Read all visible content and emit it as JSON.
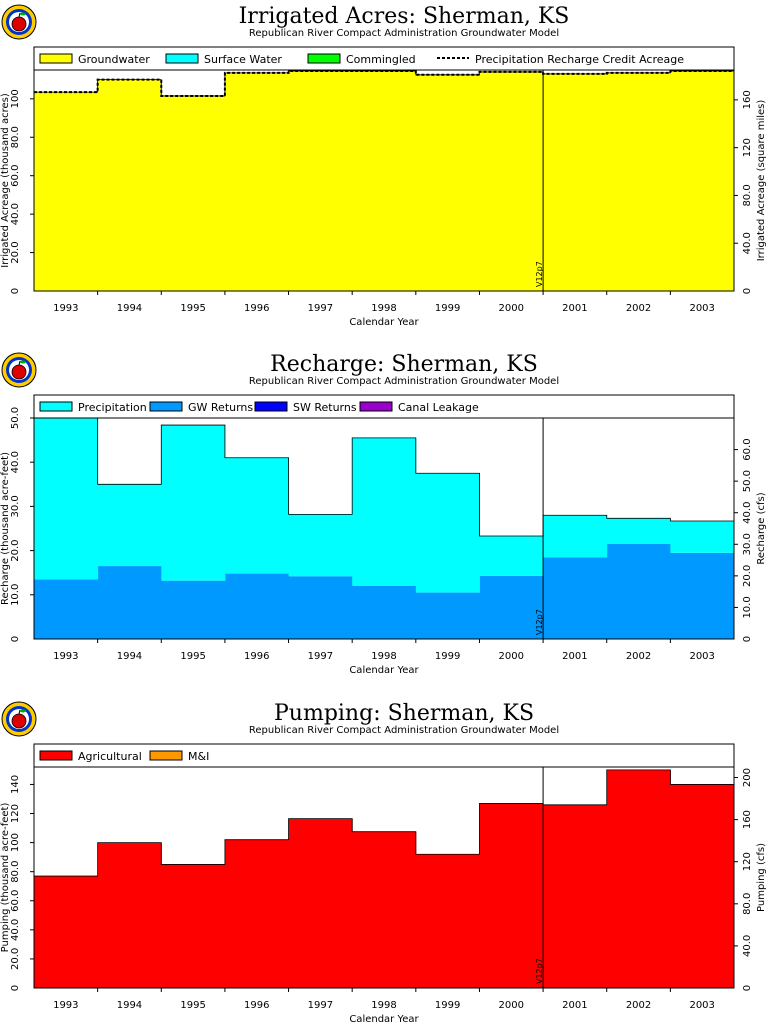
{
  "chart_data": [
    {
      "type": "area",
      "title": "Irrigated Acres: Sherman, KS",
      "subtitle": "Republican River Compact Administration Groundwater Model",
      "xlabel": "Calendar Year",
      "ylabel": "Irrigated Acreage (thousand acres)",
      "y2label": "Irrigated Acreage (square miles)",
      "categories": [
        "1993",
        "1994",
        "1995",
        "1996",
        "1997",
        "1998",
        "1999",
        "2000",
        "2001",
        "2002",
        "2003"
      ],
      "ylim": [
        0,
        115
      ],
      "yticks": [
        "20.0",
        "40.0",
        "60.0",
        "80.0",
        "100"
      ],
      "y2ticks": [
        "40.0",
        "80.0",
        "120",
        "160"
      ],
      "legend": [
        {
          "name": "Groundwater",
          "color": "#ffff00",
          "kind": "box"
        },
        {
          "name": "Surface Water",
          "color": "#00ffff",
          "kind": "box"
        },
        {
          "name": "Commingled",
          "color": "#00ff00",
          "kind": "box"
        },
        {
          "name": "Precipitation Recharge Credit Acreage",
          "color": "#000000",
          "kind": "dash"
        }
      ],
      "series": [
        {
          "name": "Groundwater",
          "color": "#ffff00",
          "values": [
            103.5,
            110.0,
            101.5,
            113.5,
            114.5,
            114.5,
            112.5,
            114.0,
            113.0,
            113.5,
            114.5
          ]
        },
        {
          "name": "Surface Water",
          "color": "#00ffff",
          "values": [
            0,
            0,
            0,
            0,
            0,
            0,
            0,
            0,
            0,
            0,
            0
          ]
        },
        {
          "name": "Commingled",
          "color": "#00ff00",
          "values": [
            0,
            0,
            0,
            0,
            0,
            0,
            0,
            0,
            0,
            0,
            0
          ]
        }
      ],
      "dashed_line": {
        "name": "Precipitation Recharge Credit Acreage",
        "values": [
          103.5,
          110.0,
          101.5,
          113.5,
          114.5,
          114.5,
          112.5,
          114.0,
          113.0,
          113.5,
          114.5
        ]
      },
      "marker": {
        "label": "V12p7",
        "year": 2000.5
      }
    },
    {
      "type": "area",
      "title": "Recharge: Sherman, KS",
      "subtitle": "Republican River Compact Administration Groundwater Model",
      "xlabel": "Calendar Year",
      "ylabel": "Recharge (thousand acre-feet)",
      "y2label": "Recharge (cfs)",
      "categories": [
        "1993",
        "1994",
        "1995",
        "1996",
        "1997",
        "1998",
        "1999",
        "2000",
        "2001",
        "2002",
        "2003"
      ],
      "ylim": [
        0,
        50
      ],
      "yticks": [
        "10.0",
        "20.0",
        "30.0",
        "40.0",
        "50.0"
      ],
      "y2ticks": [
        "10.0",
        "20.0",
        "30.0",
        "40.0",
        "50.0",
        "60.0"
      ],
      "legend": [
        {
          "name": "Precipitation",
          "color": "#00ffff",
          "kind": "box"
        },
        {
          "name": "GW Returns",
          "color": "#0099ff",
          "kind": "box"
        },
        {
          "name": "SW Returns",
          "color": "#0000ff",
          "kind": "box"
        },
        {
          "name": "Canal Leakage",
          "color": "#9900cc",
          "kind": "box"
        }
      ],
      "series": [
        {
          "name": "GW Returns",
          "color": "#0099ff",
          "values": [
            13.5,
            16.5,
            13.2,
            14.8,
            14.2,
            12.0,
            10.5,
            14.3,
            18.5,
            21.5,
            19.5
          ]
        },
        {
          "name": "SW Returns",
          "color": "#0000ff",
          "values": [
            0,
            0,
            0,
            0,
            0,
            0,
            0,
            0,
            0,
            0,
            0
          ]
        },
        {
          "name": "Canal Leakage",
          "color": "#9900cc",
          "values": [
            0,
            0,
            0,
            0,
            0,
            0,
            0,
            0,
            0,
            0,
            0
          ]
        },
        {
          "name": "Precipitation",
          "color": "#00ffff",
          "values": [
            36.5,
            18.5,
            35.2,
            26.2,
            14.0,
            33.5,
            27.0,
            9.0,
            9.5,
            5.8,
            7.2
          ]
        }
      ],
      "marker": {
        "label": "V12p7",
        "year": 2000.5
      }
    },
    {
      "type": "area",
      "title": "Pumping: Sherman, KS",
      "subtitle": "Republican River Compact Administration Groundwater Model",
      "xlabel": "Calendar Year",
      "ylabel": "Pumping (thousand acre-feet)",
      "y2label": "Pumping (cfs)",
      "categories": [
        "1993",
        "1994",
        "1995",
        "1996",
        "1997",
        "1998",
        "1999",
        "2000",
        "2001",
        "2002",
        "2003"
      ],
      "ylim": [
        0,
        152
      ],
      "yticks": [
        "20.0",
        "40.0",
        "60.0",
        "80.0",
        "100",
        "120",
        "140"
      ],
      "y2ticks": [
        "40.0",
        "80.0",
        "120",
        "160",
        "200"
      ],
      "legend": [
        {
          "name": "Agricultural",
          "color": "#ff0000",
          "kind": "box"
        },
        {
          "name": "M&I",
          "color": "#ff9900",
          "kind": "box"
        }
      ],
      "series": [
        {
          "name": "Agricultural",
          "color": "#ff0000",
          "values": [
            77.0,
            100.0,
            85.0,
            102.0,
            116.5,
            107.5,
            92.0,
            127.0,
            126.0,
            150.0,
            140.0
          ]
        },
        {
          "name": "M&I",
          "color": "#ff9900",
          "values": [
            0,
            0,
            0,
            0,
            0,
            0,
            0,
            0,
            0,
            0,
            0
          ]
        }
      ],
      "marker": {
        "label": "V12p7",
        "year": 2000.5
      }
    }
  ]
}
